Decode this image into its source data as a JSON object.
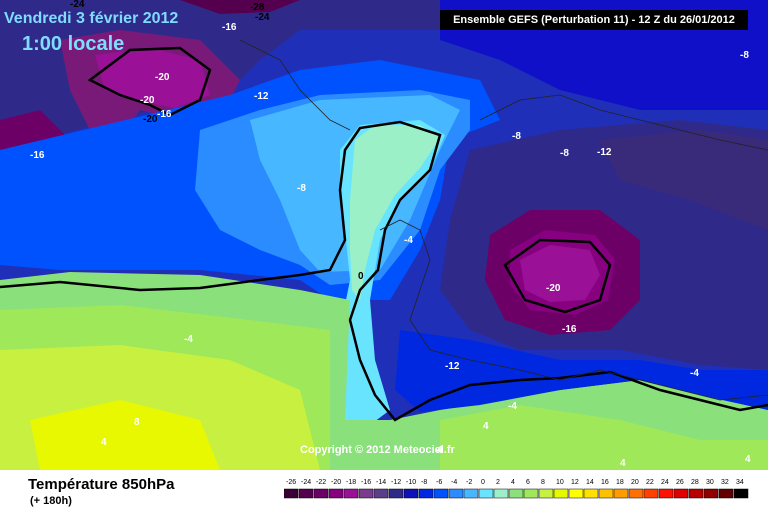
{
  "header": {
    "date": "Vendredi 3 février 2012",
    "time": "1:00 locale",
    "model": "Ensemble GEFS (Perturbation 11)  -  12 Z du 26/01/2012"
  },
  "footer": {
    "parameter": "Température 850hPa",
    "lead": "(+ 180h)",
    "copyright": "Copyright © 2012 Meteociel.fr"
  },
  "contour_labels": [
    {
      "text": "-24"
    },
    {
      "text": "-20"
    },
    {
      "text": "-28"
    },
    {
      "text": "-24"
    },
    {
      "text": "-16"
    },
    {
      "text": "-20"
    },
    {
      "text": "-20"
    },
    {
      "text": "-12"
    },
    {
      "text": "-16"
    },
    {
      "text": "-16"
    },
    {
      "text": "-8"
    },
    {
      "text": "-8"
    },
    {
      "text": "-8"
    },
    {
      "text": "-12"
    },
    {
      "text": "-8"
    },
    {
      "text": "-4"
    },
    {
      "text": "0"
    },
    {
      "text": "-20"
    },
    {
      "text": "-16"
    },
    {
      "text": "-12"
    },
    {
      "text": "-4"
    },
    {
      "text": "-4"
    },
    {
      "text": "-4"
    },
    {
      "text": "4"
    },
    {
      "text": "8"
    },
    {
      "text": "4"
    },
    {
      "text": "4"
    },
    {
      "text": "4"
    },
    {
      "text": "4"
    }
  ],
  "scale": {
    "labels": [
      "-26",
      "-24",
      "-22",
      "-20",
      "-18",
      "-16",
      "-14",
      "-12",
      "-10",
      "-8",
      "-6",
      "-4",
      "-2",
      "0",
      "2",
      "4",
      "6",
      "8",
      "10",
      "12",
      "14",
      "16",
      "18",
      "20",
      "22",
      "24",
      "26",
      "28",
      "30",
      "32",
      "34"
    ],
    "colors": [
      "#3a0035",
      "#55004f",
      "#6d0066",
      "#860080",
      "#9a1096",
      "#7a3a8e",
      "#5a3f8a",
      "#2f2a8a",
      "#1010b8",
      "#0028e0",
      "#0052ff",
      "#2a8cff",
      "#47b8ff",
      "#68e4ff",
      "#9cf0c8",
      "#8ae07a",
      "#9ee85a",
      "#c8f040",
      "#e8f800",
      "#ffff00",
      "#ffe000",
      "#ffc000",
      "#ff9c00",
      "#ff7000",
      "#ff4000",
      "#ff1000",
      "#e00000",
      "#b80000",
      "#900000",
      "#600000",
      "#000000"
    ]
  }
}
